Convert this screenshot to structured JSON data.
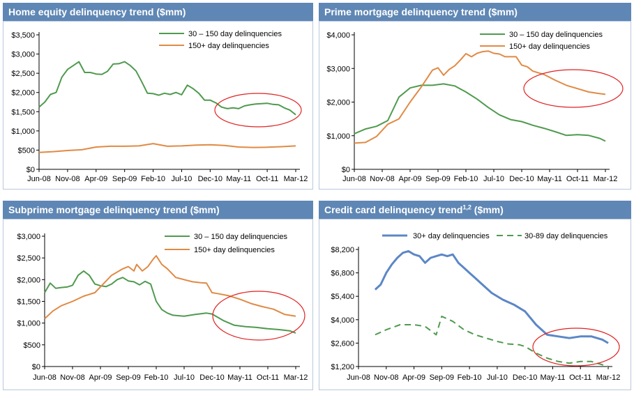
{
  "chart_data": [
    {
      "type": "line",
      "title": "Home equity delinquency trend ($mm)",
      "title_sup": "",
      "title_suffix": "",
      "categories": [
        "Jun-08",
        "Nov-08",
        "Apr-09",
        "Sep-09",
        "Feb-10",
        "Jul-10",
        "Dec-10",
        "May-11",
        "Oct-11",
        "Mar-12"
      ],
      "ylim": [
        0,
        3500
      ],
      "yticks": [
        0,
        500,
        1000,
        1500,
        2000,
        2500,
        3000,
        3500
      ],
      "ytick_labels": [
        "$0",
        "$500",
        "$1,000",
        "$1,500",
        "$2,000",
        "$2,500",
        "$3,000",
        "$3,500"
      ],
      "grid": false,
      "legend": "top-right",
      "series": [
        {
          "name": "30 – 150 day delinquencies",
          "color": "#4f9a4f",
          "dash": "solid",
          "x": [
            0,
            0.2,
            0.4,
            0.6,
            0.8,
            1,
            1.2,
            1.4,
            1.6,
            1.8,
            2,
            2.2,
            2.4,
            2.6,
            2.8,
            3,
            3.2,
            3.4,
            3.6,
            3.8,
            4,
            4.2,
            4.4,
            4.6,
            4.8,
            5,
            5.2,
            5.4,
            5.6,
            5.8,
            6,
            6.2,
            6.4,
            6.6,
            6.8,
            7,
            7.2,
            7.4,
            7.6,
            7.8,
            8,
            8.2,
            8.4,
            8.6,
            8.8,
            9
          ],
          "values": [
            1620,
            1750,
            1950,
            2000,
            2400,
            2600,
            2700,
            2800,
            2520,
            2520,
            2480,
            2470,
            2550,
            2740,
            2750,
            2800,
            2700,
            2560,
            2280,
            1980,
            1970,
            1930,
            1980,
            1950,
            2000,
            1940,
            2190,
            2100,
            1980,
            1800,
            1800,
            1730,
            1620,
            1580,
            1600,
            1580,
            1650,
            1680,
            1700,
            1710,
            1720,
            1690,
            1680,
            1600,
            1540,
            1420
          ]
        },
        {
          "name": "150+ day delinquencies",
          "color": "#e08a44",
          "dash": "solid",
          "x": [
            0,
            0.5,
            1,
            1.5,
            2,
            2.5,
            3,
            3.5,
            4,
            4.5,
            5,
            5.5,
            6,
            6.5,
            7,
            7.5,
            8,
            8.5,
            9
          ],
          "values": [
            440,
            460,
            490,
            510,
            580,
            600,
            600,
            610,
            670,
            600,
            610,
            630,
            640,
            620,
            580,
            570,
            575,
            590,
            610
          ]
        }
      ]
    },
    {
      "type": "line",
      "title": "Prime mortgage delinquency trend ($mm)",
      "title_sup": "",
      "title_suffix": "",
      "categories": [
        "Jun-08",
        "Nov-08",
        "Apr-09",
        "Sep-09",
        "Feb-10",
        "Jul-10",
        "Dec-10",
        "May-11",
        "Oct-11",
        "Mar-12"
      ],
      "ylim": [
        0,
        4000
      ],
      "yticks": [
        0,
        1000,
        2000,
        3000,
        4000
      ],
      "ytick_labels": [
        "$0",
        "$1,000",
        "$2,000",
        "$3,000",
        "$4,000"
      ],
      "grid": false,
      "legend": "top-right",
      "series": [
        {
          "name": "30 – 150 day delinquencies",
          "color": "#4f9a4f",
          "dash": "solid",
          "x": [
            0,
            0.4,
            0.8,
            1.2,
            1.6,
            2,
            2.4,
            2.8,
            3.2,
            3.6,
            4,
            4.4,
            4.8,
            5.2,
            5.6,
            6,
            6.4,
            6.8,
            7.2,
            7.6,
            8,
            8.4,
            8.8,
            9
          ],
          "values": [
            1060,
            1200,
            1280,
            1450,
            2150,
            2420,
            2500,
            2500,
            2540,
            2480,
            2300,
            2090,
            1840,
            1620,
            1480,
            1420,
            1310,
            1220,
            1120,
            1010,
            1030,
            1010,
            920,
            840
          ]
        },
        {
          "name": "150+ day delinquencies",
          "color": "#e08a44",
          "dash": "solid",
          "x": [
            0,
            0.4,
            0.8,
            1.2,
            1.6,
            2,
            2.4,
            2.8,
            3,
            3.2,
            3.4,
            3.6,
            3.8,
            4,
            4.2,
            4.4,
            4.6,
            4.8,
            5,
            5.2,
            5.4,
            5.6,
            5.8,
            6,
            6.2,
            6.4,
            6.8,
            7.2,
            7.6,
            8,
            8.4,
            8.8,
            9
          ],
          "values": [
            780,
            800,
            980,
            1340,
            1500,
            2000,
            2450,
            2950,
            3020,
            2800,
            2970,
            3080,
            3250,
            3440,
            3350,
            3450,
            3500,
            3520,
            3450,
            3430,
            3350,
            3350,
            3350,
            3100,
            3050,
            2920,
            2820,
            2650,
            2500,
            2400,
            2300,
            2250,
            2230
          ]
        }
      ]
    },
    {
      "type": "line",
      "title": "Subprime mortgage delinquency trend ($mm)",
      "title_sup": "",
      "title_suffix": "",
      "categories": [
        "Jun-08",
        "Nov-08",
        "Apr-09",
        "Sep-09",
        "Feb-10",
        "Jul-10",
        "Dec-10",
        "May-11",
        "Oct-11",
        "Mar-12"
      ],
      "ylim": [
        0,
        3000
      ],
      "yticks": [
        0,
        500,
        1000,
        1500,
        2000,
        2500,
        3000
      ],
      "ytick_labels": [
        "$0",
        "$500",
        "$1,000",
        "$1,500",
        "$2,000",
        "$2,500",
        "$3,000"
      ],
      "grid": false,
      "legend": "top-right",
      "series": [
        {
          "name": "30 – 150 day delinquencies",
          "color": "#4f9a4f",
          "dash": "solid",
          "x": [
            0,
            0.2,
            0.4,
            0.6,
            0.8,
            1,
            1.2,
            1.4,
            1.6,
            1.8,
            2,
            2.2,
            2.4,
            2.6,
            2.8,
            3,
            3.2,
            3.4,
            3.6,
            3.8,
            4,
            4.2,
            4.4,
            4.6,
            4.8,
            5,
            5.4,
            5.8,
            6,
            6.4,
            6.8,
            7.2,
            7.6,
            8,
            8.4,
            8.8,
            9
          ],
          "values": [
            1700,
            1920,
            1800,
            1820,
            1830,
            1870,
            2100,
            2200,
            2100,
            1900,
            1860,
            1840,
            1900,
            2000,
            2050,
            1970,
            1950,
            1880,
            1960,
            1900,
            1500,
            1310,
            1230,
            1180,
            1170,
            1160,
            1200,
            1230,
            1210,
            1060,
            950,
            920,
            900,
            870,
            850,
            820,
            770
          ]
        },
        {
          "name": "150+ day delinquencies",
          "color": "#e08a44",
          "dash": "solid",
          "x": [
            0,
            0.3,
            0.6,
            1,
            1.4,
            1.8,
            2.1,
            2.4,
            2.8,
            3,
            3.2,
            3.3,
            3.5,
            3.7,
            3.9,
            4,
            4.2,
            4.4,
            4.7,
            5,
            5.3,
            5.6,
            5.8,
            6,
            6.2,
            6.6,
            7,
            7.4,
            7.8,
            8.2,
            8.6,
            9
          ],
          "values": [
            1100,
            1280,
            1400,
            1500,
            1620,
            1700,
            1900,
            2100,
            2250,
            2300,
            2200,
            2350,
            2200,
            2300,
            2480,
            2550,
            2350,
            2250,
            2050,
            2000,
            1950,
            1930,
            1920,
            1700,
            1680,
            1630,
            1550,
            1450,
            1380,
            1320,
            1200,
            1160
          ]
        }
      ]
    },
    {
      "type": "line",
      "title": "Credit card delinquency trend",
      "title_sup": "1,2",
      "title_suffix": " ($mm)",
      "categories": [
        "Jun-08",
        "Nov-08",
        "Apr-09",
        "Sep-09",
        "Feb-10",
        "Jul-10",
        "Dec-10",
        "May-11",
        "Oct-11",
        "Mar-12"
      ],
      "ylim": [
        1200,
        8200
      ],
      "yticks": [
        1200,
        2600,
        4000,
        5400,
        6800,
        8200
      ],
      "ytick_labels": [
        "$1,200",
        "$2,600",
        "$4,000",
        "$5,400",
        "$6,800",
        "$8,200"
      ],
      "grid": false,
      "legend": "top",
      "series": [
        {
          "name": "30+ day delinquencies",
          "color": "#5b87c6",
          "dash": "solid",
          "width": 3,
          "x": [
            0.6,
            0.8,
            1,
            1.2,
            1.4,
            1.6,
            1.8,
            2,
            2.2,
            2.4,
            2.6,
            2.8,
            3,
            3.2,
            3.4,
            3.6,
            3.8,
            4,
            4.2,
            4.4,
            4.8,
            5.2,
            5.6,
            6,
            6.4,
            6.8,
            7.2,
            7.6,
            8,
            8.4,
            8.8,
            9
          ],
          "values": [
            5800,
            6100,
            6800,
            7300,
            7700,
            8000,
            8100,
            7900,
            7800,
            7400,
            7700,
            7800,
            7900,
            7800,
            7900,
            7400,
            7100,
            6800,
            6500,
            6200,
            5600,
            5200,
            4900,
            4500,
            3700,
            3100,
            3000,
            2900,
            3000,
            3000,
            2800,
            2600
          ]
        },
        {
          "name": "30-89 day delinquencies",
          "color": "#4f9a4f",
          "dash": "dashed",
          "width": 2,
          "x": [
            0.6,
            1,
            1.5,
            2,
            2.4,
            2.8,
            3,
            3.4,
            3.8,
            4.2,
            4.6,
            5,
            5.4,
            5.8,
            6,
            6.4,
            6.8,
            7.2,
            7.6,
            8,
            8.4,
            8.8,
            9
          ],
          "values": [
            3100,
            3400,
            3700,
            3700,
            3600,
            3100,
            4200,
            3900,
            3400,
            3100,
            2900,
            2700,
            2550,
            2500,
            2400,
            2000,
            1700,
            1500,
            1400,
            1500,
            1500,
            1300,
            1200
          ]
        }
      ]
    }
  ]
}
